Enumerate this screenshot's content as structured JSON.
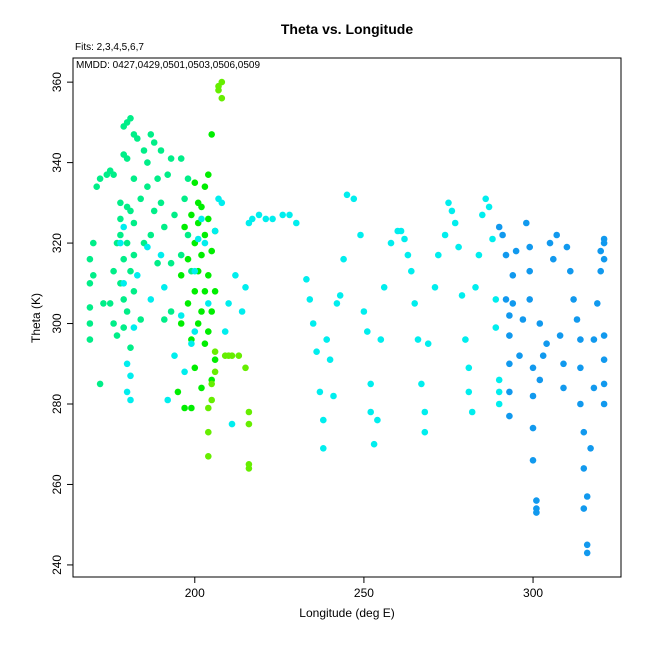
{
  "chart_data": {
    "type": "scatter",
    "title": "Theta vs. Longitude",
    "fits_label": "Fits: 2,3,4,5,6,7",
    "mmdd_label": "MMDD: 0427,0429,0501,0503,0506,0509",
    "xlabel": "Longitude (deg E)",
    "ylabel": "Theta (K)",
    "xlim": [
      164,
      326
    ],
    "ylim": [
      237,
      366
    ],
    "x_ticks": [
      200,
      250,
      300
    ],
    "y_ticks": [
      240,
      260,
      280,
      300,
      320,
      340,
      360
    ],
    "x_tick_labels": [
      "200",
      "250",
      "300"
    ],
    "y_tick_labels": [
      "240",
      "260",
      "280",
      "300",
      "320",
      "340",
      "360"
    ],
    "grid": false,
    "series": [
      {
        "color": "#00ee88",
        "points": [
          [
            169,
            296
          ],
          [
            169,
            300
          ],
          [
            169,
            304
          ],
          [
            169,
            310
          ],
          [
            169,
            316
          ],
          [
            170,
            312
          ],
          [
            170,
            320
          ],
          [
            171,
            334
          ],
          [
            172,
            336
          ],
          [
            172,
            285
          ],
          [
            173,
            305
          ],
          [
            174,
            337
          ],
          [
            175,
            338
          ],
          [
            175,
            305
          ],
          [
            176,
            337
          ],
          [
            176,
            313
          ],
          [
            176,
            300
          ],
          [
            177,
            320
          ],
          [
            177,
            297
          ],
          [
            178,
            330
          ],
          [
            178,
            326
          ],
          [
            178,
            310
          ],
          [
            178,
            322
          ],
          [
            179,
            349
          ],
          [
            179,
            342
          ],
          [
            179,
            316
          ],
          [
            179,
            306
          ],
          [
            179,
            299
          ],
          [
            180,
            350
          ],
          [
            180,
            341
          ],
          [
            180,
            329
          ],
          [
            180,
            320
          ],
          [
            180,
            303
          ],
          [
            181,
            351
          ],
          [
            181,
            328
          ],
          [
            181,
            313
          ],
          [
            181,
            294
          ],
          [
            182,
            347
          ],
          [
            182,
            336
          ],
          [
            182,
            325
          ],
          [
            182,
            317
          ],
          [
            182,
            308
          ],
          [
            183,
            346
          ],
          [
            184,
            331
          ],
          [
            184,
            301
          ],
          [
            185,
            343
          ],
          [
            185,
            320
          ],
          [
            186,
            340
          ],
          [
            186,
            334
          ],
          [
            187,
            347
          ],
          [
            187,
            322
          ],
          [
            188,
            328
          ],
          [
            188,
            345
          ],
          [
            189,
            336
          ],
          [
            189,
            315
          ],
          [
            190,
            343
          ],
          [
            190,
            330
          ],
          [
            191,
            324
          ],
          [
            191,
            301
          ],
          [
            192,
            337
          ],
          [
            193,
            341
          ],
          [
            193,
            315
          ],
          [
            193,
            303
          ],
          [
            194,
            327
          ],
          [
            196,
            341
          ],
          [
            196,
            317
          ],
          [
            197,
            331
          ],
          [
            198,
            322
          ],
          [
            198,
            336
          ],
          [
            199,
            313
          ]
        ]
      },
      {
        "color": "#00ee00",
        "points": [
          [
            195,
            283
          ],
          [
            196,
            300
          ],
          [
            196,
            312
          ],
          [
            197,
            279
          ],
          [
            197,
            324
          ],
          [
            198,
            305
          ],
          [
            198,
            316
          ],
          [
            199,
            279
          ],
          [
            199,
            296
          ],
          [
            199,
            327
          ],
          [
            200,
            308
          ],
          [
            200,
            320
          ],
          [
            200,
            335
          ],
          [
            200,
            289
          ],
          [
            201,
            300
          ],
          [
            201,
            313
          ],
          [
            201,
            325
          ],
          [
            201,
            330
          ],
          [
            202,
            303
          ],
          [
            202,
            317
          ],
          [
            202,
            329
          ],
          [
            202,
            284
          ],
          [
            203,
            295
          ],
          [
            203,
            308
          ],
          [
            203,
            322
          ],
          [
            203,
            334
          ],
          [
            204,
            298
          ],
          [
            204,
            312
          ],
          [
            204,
            326
          ],
          [
            204,
            337
          ],
          [
            205,
            303
          ],
          [
            205,
            318
          ],
          [
            205,
            347
          ],
          [
            205,
            286
          ],
          [
            206,
            308
          ],
          [
            206,
            323
          ],
          [
            206,
            291
          ]
        ]
      },
      {
        "color": "#66ee00",
        "points": [
          [
            204,
            267
          ],
          [
            204,
            273
          ],
          [
            204,
            279
          ],
          [
            205,
            281
          ],
          [
            205,
            285
          ],
          [
            206,
            288
          ],
          [
            206,
            293
          ],
          [
            207,
            358
          ],
          [
            207,
            359
          ],
          [
            208,
            360
          ],
          [
            208,
            356
          ],
          [
            209,
            292
          ],
          [
            210,
            292
          ],
          [
            211,
            292
          ],
          [
            213,
            292
          ],
          [
            215,
            289
          ],
          [
            216,
            275
          ],
          [
            216,
            278
          ],
          [
            216,
            265
          ],
          [
            216,
            264
          ]
        ]
      },
      {
        "color": "#00eeee",
        "points": [
          [
            178,
            320
          ],
          [
            179,
            324
          ],
          [
            179,
            310
          ],
          [
            180,
            290
          ],
          [
            180,
            283
          ],
          [
            181,
            287
          ],
          [
            181,
            281
          ],
          [
            182,
            299
          ],
          [
            183,
            312
          ],
          [
            186,
            319
          ],
          [
            187,
            306
          ],
          [
            190,
            317
          ],
          [
            191,
            309
          ],
          [
            192,
            281
          ],
          [
            194,
            292
          ],
          [
            196,
            302
          ],
          [
            197,
            288
          ],
          [
            199,
            295
          ],
          [
            200,
            298
          ],
          [
            200,
            313
          ],
          [
            201,
            321
          ],
          [
            202,
            326
          ],
          [
            203,
            320
          ],
          [
            204,
            305
          ],
          [
            206,
            323
          ],
          [
            207,
            331
          ],
          [
            208,
            330
          ],
          [
            209,
            298
          ],
          [
            210,
            305
          ],
          [
            211,
            275
          ],
          [
            212,
            312
          ],
          [
            214,
            303
          ],
          [
            215,
            309
          ],
          [
            216,
            325
          ],
          [
            217,
            326
          ],
          [
            219,
            327
          ],
          [
            221,
            326
          ],
          [
            223,
            326
          ],
          [
            226,
            327
          ],
          [
            228,
            327
          ],
          [
            230,
            325
          ],
          [
            233,
            311
          ],
          [
            234,
            306
          ],
          [
            235,
            300
          ],
          [
            236,
            293
          ],
          [
            237,
            283
          ],
          [
            238,
            276
          ],
          [
            238,
            269
          ],
          [
            239,
            296
          ],
          [
            240,
            291
          ],
          [
            241,
            282
          ],
          [
            242,
            305
          ],
          [
            243,
            307
          ],
          [
            244,
            316
          ],
          [
            245,
            332
          ],
          [
            247,
            331
          ],
          [
            249,
            322
          ],
          [
            250,
            303
          ],
          [
            251,
            298
          ],
          [
            252,
            285
          ],
          [
            252,
            278
          ],
          [
            253,
            270
          ],
          [
            254,
            276
          ],
          [
            255,
            296
          ],
          [
            256,
            309
          ],
          [
            258,
            320
          ],
          [
            260,
            323
          ],
          [
            261,
            323
          ],
          [
            262,
            321
          ],
          [
            263,
            317
          ],
          [
            264,
            313
          ],
          [
            265,
            305
          ],
          [
            266,
            296
          ],
          [
            267,
            285
          ],
          [
            268,
            278
          ],
          [
            268,
            273
          ],
          [
            269,
            295
          ],
          [
            271,
            309
          ],
          [
            272,
            317
          ],
          [
            274,
            322
          ],
          [
            275,
            330
          ],
          [
            276,
            328
          ],
          [
            277,
            325
          ],
          [
            278,
            319
          ],
          [
            279,
            307
          ],
          [
            280,
            296
          ],
          [
            281,
            289
          ],
          [
            281,
            283
          ],
          [
            282,
            278
          ],
          [
            283,
            309
          ],
          [
            284,
            317
          ],
          [
            285,
            327
          ],
          [
            286,
            331
          ],
          [
            287,
            329
          ],
          [
            288,
            321
          ],
          [
            289,
            306
          ],
          [
            289,
            299
          ],
          [
            290,
            286
          ],
          [
            290,
            283
          ],
          [
            290,
            280
          ]
        ]
      },
      {
        "color": "#1199ee",
        "points": [
          [
            290,
            324
          ],
          [
            291,
            322
          ],
          [
            292,
            317
          ],
          [
            292,
            306
          ],
          [
            293,
            302
          ],
          [
            293,
            297
          ],
          [
            293,
            290
          ],
          [
            293,
            283
          ],
          [
            293,
            277
          ],
          [
            294,
            312
          ],
          [
            294,
            305
          ],
          [
            295,
            318
          ],
          [
            296,
            292
          ],
          [
            297,
            301
          ],
          [
            298,
            325
          ],
          [
            299,
            319
          ],
          [
            299,
            313
          ],
          [
            299,
            306
          ],
          [
            300,
            289
          ],
          [
            300,
            282
          ],
          [
            300,
            274
          ],
          [
            300,
            266
          ],
          [
            301,
            256
          ],
          [
            301,
            254
          ],
          [
            301,
            253
          ],
          [
            302,
            300
          ],
          [
            302,
            286
          ],
          [
            303,
            292
          ],
          [
            304,
            295
          ],
          [
            305,
            320
          ],
          [
            306,
            316
          ],
          [
            307,
            322
          ],
          [
            308,
            297
          ],
          [
            309,
            290
          ],
          [
            309,
            284
          ],
          [
            310,
            319
          ],
          [
            311,
            313
          ],
          [
            312,
            306
          ],
          [
            313,
            301
          ],
          [
            314,
            296
          ],
          [
            314,
            289
          ],
          [
            314,
            280
          ],
          [
            315,
            273
          ],
          [
            315,
            264
          ],
          [
            315,
            254
          ],
          [
            316,
            245
          ],
          [
            316,
            243
          ],
          [
            316,
            257
          ],
          [
            317,
            269
          ],
          [
            318,
            284
          ],
          [
            318,
            296
          ],
          [
            319,
            305
          ],
          [
            320,
            313
          ],
          [
            320,
            318
          ],
          [
            321,
            321
          ],
          [
            321,
            320
          ],
          [
            321,
            316
          ],
          [
            321,
            297
          ],
          [
            321,
            291
          ],
          [
            321,
            285
          ],
          [
            321,
            280
          ]
        ]
      }
    ]
  }
}
